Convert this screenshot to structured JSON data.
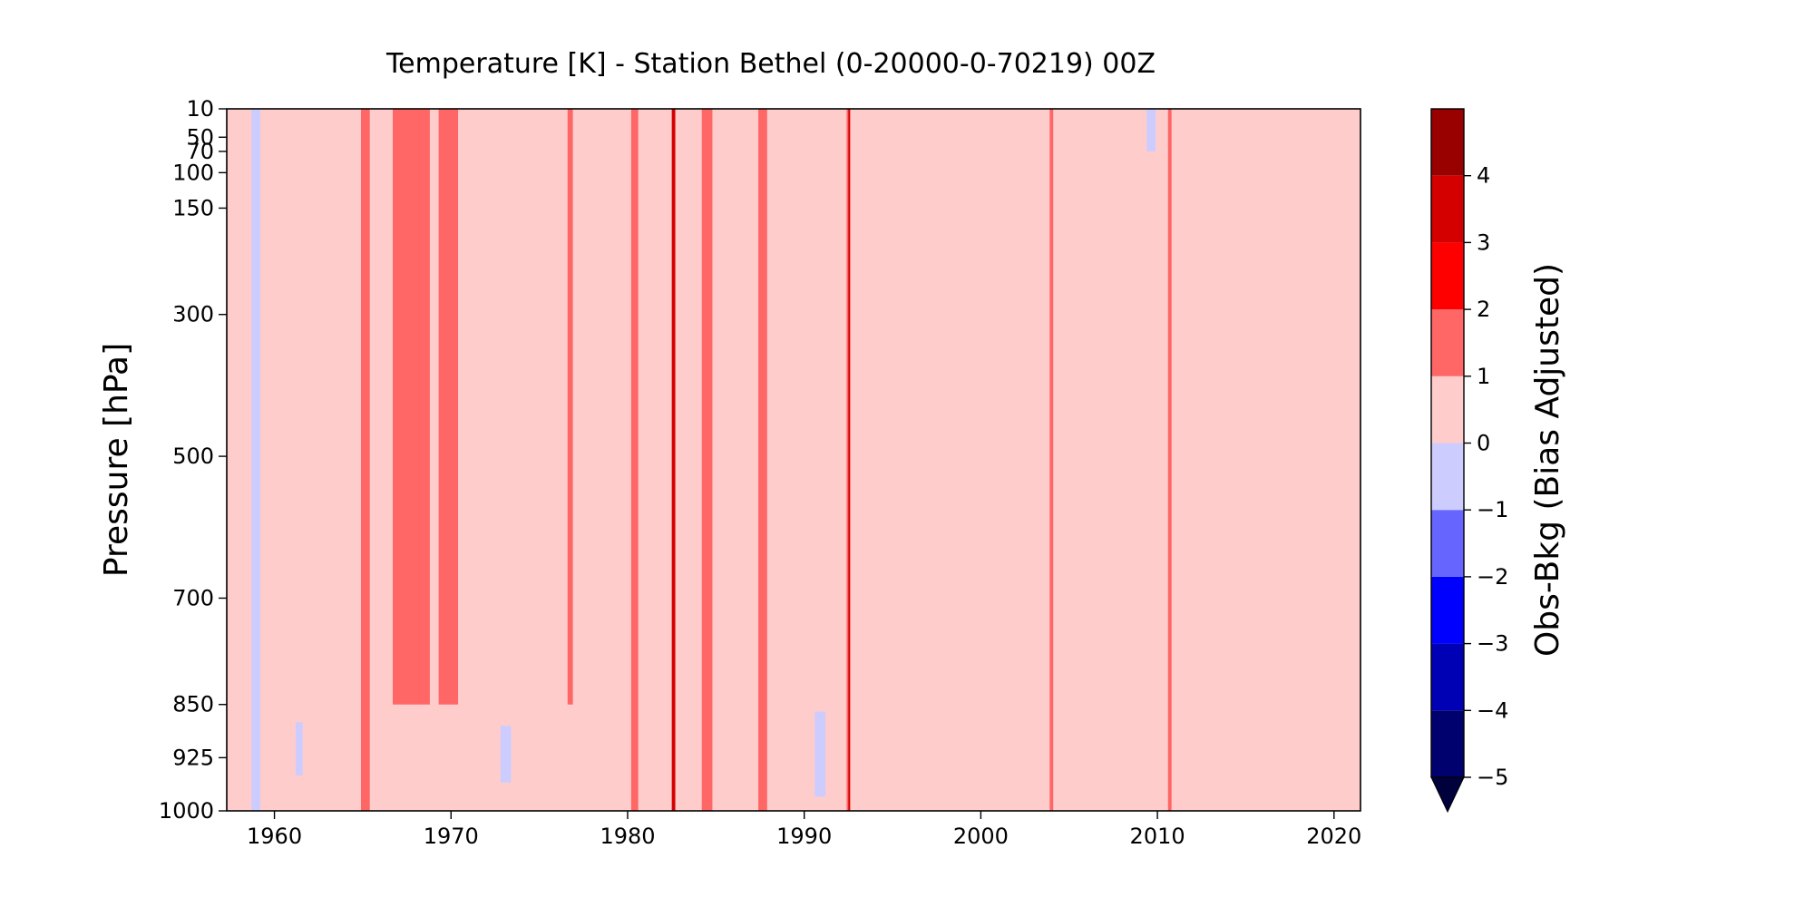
{
  "chart_data": {
    "type": "heatmap",
    "title": "Temperature [K] - Station Bethel (0-20000-0-70219) 00Z",
    "xlabel": "",
    "ylabel": "Pressure [hPa]",
    "x_range": [
      1957.3,
      2021.5
    ],
    "x_ticks": [
      1960,
      1970,
      1980,
      1990,
      2000,
      2010,
      2020
    ],
    "x_tick_labels": [
      "1960",
      "1970",
      "1980",
      "1990",
      "2000",
      "2010",
      "2020"
    ],
    "y_axis_inverted": true,
    "y_ticks": [
      10,
      50,
      70,
      100,
      150,
      300,
      500,
      700,
      850,
      925,
      1000
    ],
    "y_tick_labels": [
      "10",
      "50",
      "70",
      "100",
      "150",
      "300",
      "500",
      "700",
      "850",
      "925",
      "1000"
    ],
    "background_value_range": [
      0,
      1
    ],
    "features": [
      {
        "from": 1964.9,
        "to": 1965.4,
        "value_range": [
          1,
          2
        ],
        "level_range": [
          10,
          1000
        ]
      },
      {
        "from": 1966.7,
        "to": 1968.8,
        "value_range": [
          1,
          2
        ],
        "level_range": [
          10,
          850
        ]
      },
      {
        "from": 1969.3,
        "to": 1970.4,
        "value_range": [
          1,
          2
        ],
        "level_range": [
          10,
          850
        ]
      },
      {
        "from": 1976.6,
        "to": 1976.9,
        "value_range": [
          1,
          2
        ],
        "level_range": [
          10,
          850
        ]
      },
      {
        "from": 1980.2,
        "to": 1980.6,
        "value_range": [
          1,
          2
        ],
        "level_range": [
          10,
          1000
        ]
      },
      {
        "from": 1984.2,
        "to": 1984.8,
        "value_range": [
          1,
          2
        ],
        "level_range": [
          10,
          1000
        ]
      },
      {
        "from": 1987.4,
        "to": 1987.9,
        "value_range": [
          1,
          2
        ],
        "level_range": [
          10,
          1000
        ]
      },
      {
        "from": 1992.4,
        "to": 1992.6,
        "value_range": [
          1,
          2
        ],
        "level_range": [
          10,
          1000
        ]
      },
      {
        "from": 2003.9,
        "to": 2004.1,
        "value_range": [
          1,
          2
        ],
        "level_range": [
          10,
          1000
        ]
      },
      {
        "from": 2010.6,
        "to": 2010.8,
        "value_range": [
          1,
          2
        ],
        "level_range": [
          10,
          1000
        ]
      },
      {
        "from": 1982.5,
        "to": 1982.7,
        "value_range": [
          3,
          4
        ],
        "level_range": [
          10,
          1000
        ]
      },
      {
        "from": 1992.5,
        "to": 1992.6,
        "value_range": [
          3,
          4
        ],
        "level_range": [
          10,
          1000
        ]
      },
      {
        "from": 1958.7,
        "to": 1959.2,
        "value_range": [
          -1,
          0
        ],
        "level_range": [
          10,
          1000
        ]
      },
      {
        "from": 1961.2,
        "to": 1961.6,
        "value_range": [
          -1,
          0
        ],
        "level_range": [
          875,
          950
        ]
      },
      {
        "from": 1972.8,
        "to": 1973.4,
        "value_range": [
          -1,
          0
        ],
        "level_range": [
          880,
          960
        ]
      },
      {
        "from": 1990.6,
        "to": 1991.2,
        "value_range": [
          -1,
          0
        ],
        "level_range": [
          860,
          980
        ]
      },
      {
        "from": 2009.4,
        "to": 2009.9,
        "value_range": [
          -1,
          0
        ],
        "level_range": [
          10,
          70
        ]
      }
    ],
    "colorbar": {
      "label": "Obs-Bkg (Bias Adjusted)",
      "levels": [
        -5,
        -4,
        -3,
        -2,
        -1,
        0,
        1,
        2,
        3,
        4,
        5
      ],
      "tick_labels": [
        "−5",
        "−4",
        "−3",
        "−2",
        "−1",
        "0",
        "1",
        "2",
        "3",
        "4"
      ],
      "colors": [
        "#00006e",
        "#0000b4",
        "#0000ff",
        "#6666ff",
        "#ccccff",
        "#ffcccc",
        "#ff6666",
        "#ff0000",
        "#d40000",
        "#990000"
      ],
      "extend": "min",
      "under_color": "#00003c"
    }
  }
}
